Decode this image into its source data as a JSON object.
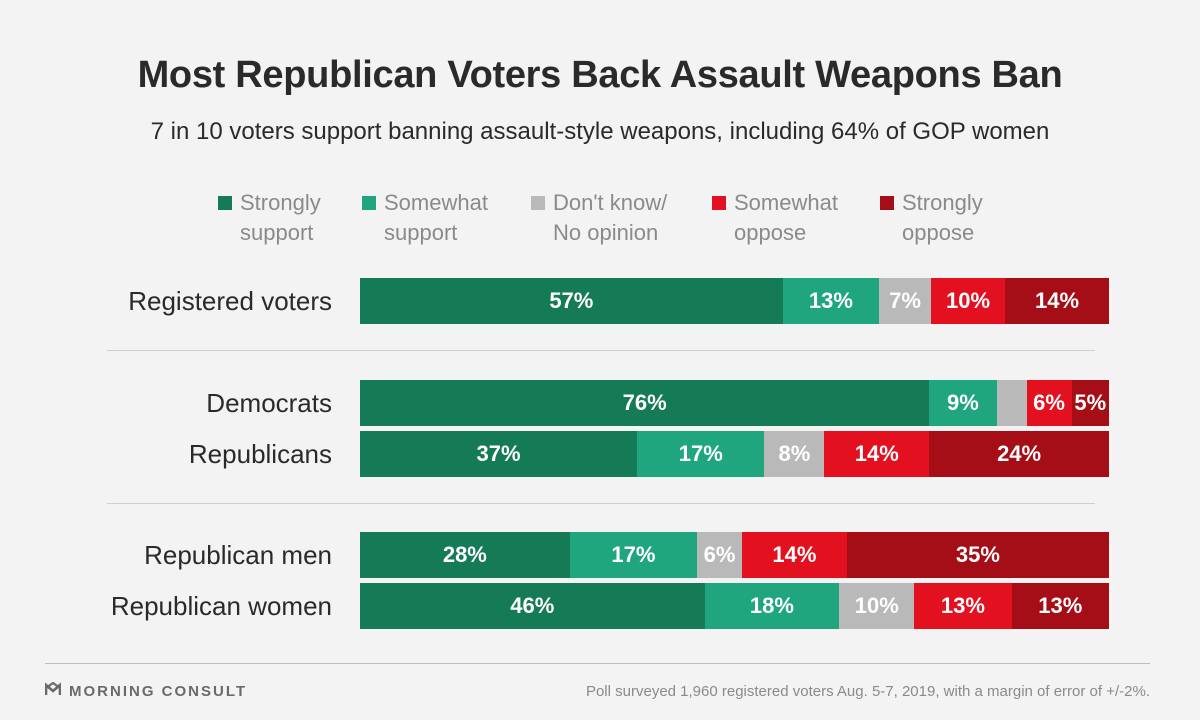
{
  "title": "Most Republican Voters Back Assault Weapons Ban",
  "subtitle": "7 in 10 voters support banning assault-style weapons, including 64% of GOP women",
  "footer": {
    "brand": "MORNING CONSULT",
    "brand_icon": "morning-consult-logo-icon",
    "source": "Poll surveyed 1,960 registered voters Aug. 5-7, 2019, with a margin of error of +/-2%."
  },
  "colors": {
    "strongly_support": "#157a56",
    "somewhat_support": "#1fa67e",
    "dont_know": "#b9b9b9",
    "somewhat_oppose": "#e3101f",
    "strongly_oppose": "#a50d17"
  },
  "chart_data": {
    "type": "bar",
    "orientation": "horizontal",
    "stacked": true,
    "unit": "%",
    "categories": [
      "Registered voters",
      "Democrats",
      "Republicans",
      "Republican men",
      "Republican women"
    ],
    "groups": [
      [
        "Registered voters"
      ],
      [
        "Democrats",
        "Republicans"
      ],
      [
        "Republican men",
        "Republican women"
      ]
    ],
    "series": [
      {
        "name": "Strongly\nsupport",
        "color": "#157a56",
        "values": [
          57,
          76,
          37,
          28,
          46
        ]
      },
      {
        "name": "Somewhat\nsupport",
        "color": "#1fa67e",
        "values": [
          13,
          9,
          17,
          17,
          18
        ]
      },
      {
        "name": "Don't know/\nNo opinion",
        "color": "#b9b9b9",
        "values": [
          7,
          4,
          8,
          6,
          10
        ]
      },
      {
        "name": "Somewhat\noppose",
        "color": "#e3101f",
        "values": [
          10,
          6,
          14,
          14,
          13
        ]
      },
      {
        "name": "Strongly\noppose",
        "color": "#a50d17",
        "values": [
          14,
          5,
          24,
          35,
          13
        ]
      }
    ],
    "data_labels": [
      [
        "57%",
        "76%",
        "37%",
        "28%",
        "46%"
      ],
      [
        "13%",
        "9%",
        "17%",
        "17%",
        "18%"
      ],
      [
        "7%",
        "",
        "8%",
        "6%",
        "10%"
      ],
      [
        "10%",
        "6%",
        "14%",
        "14%",
        "13%"
      ],
      [
        "14%",
        "5%",
        "24%",
        "35%",
        "13%"
      ]
    ],
    "legend_position": "top",
    "grid": false
  }
}
